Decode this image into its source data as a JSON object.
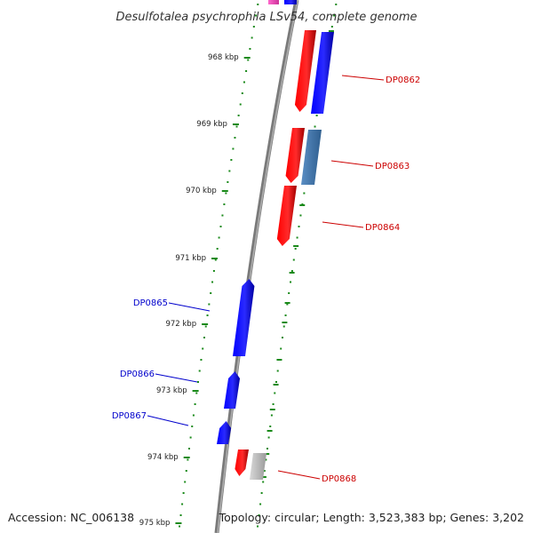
{
  "title": "Desulfotalea psychrophila LSv54, complete genome",
  "accession": "Accession: NC_006138",
  "summary": "Topology: circular; Length: 3,523,383 bp; Genes: 3,202",
  "tick_labels": [
    "968 kbp",
    "969 kbp",
    "970 kbp",
    "971 kbp",
    "972 kbp",
    "973 kbp",
    "974 kbp",
    "975 kbp"
  ],
  "genes": [
    {
      "name": "DP0862",
      "strand": "reverse",
      "color": "#cc0000"
    },
    {
      "name": "DP0863",
      "strand": "reverse",
      "color": "#cc0000"
    },
    {
      "name": "DP0864",
      "strand": "reverse",
      "color": "#cc0000"
    },
    {
      "name": "DP0865",
      "strand": "forward",
      "color": "#0000cc"
    },
    {
      "name": "DP0866",
      "strand": "forward",
      "color": "#0000cc"
    },
    {
      "name": "DP0867",
      "strand": "forward",
      "color": "#0000cc"
    },
    {
      "name": "DP0868",
      "strand": "reverse",
      "color": "#cc0000"
    }
  ],
  "colors": {
    "forward_cds": "#0000ff",
    "reverse_cds": "#ff0000",
    "blast_hit": "#4a7fb5",
    "other_feature": "#bdbdbd",
    "backbone": "#808080",
    "tick": "#1a8a1a"
  }
}
